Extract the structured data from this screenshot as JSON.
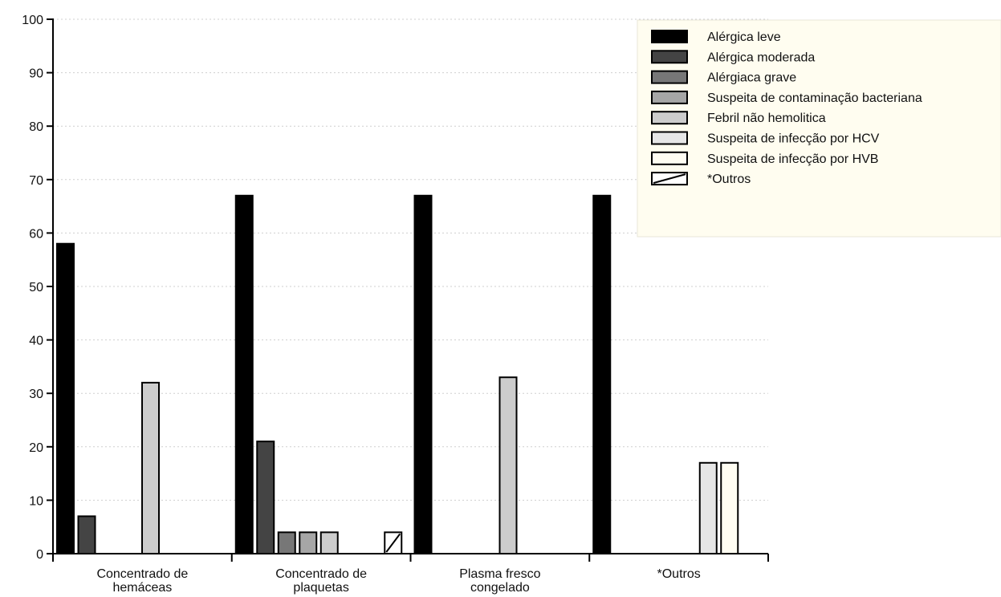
{
  "chart_data": {
    "type": "bar",
    "title": "",
    "xlabel": "",
    "ylabel": "",
    "ylim": [
      0,
      100
    ],
    "yticks": [
      0,
      10,
      20,
      30,
      40,
      50,
      60,
      70,
      80,
      90,
      100
    ],
    "grid": "horizontal-dotted",
    "legend_position": "top-right",
    "categories": [
      [
        "Concentrado de",
        "hemáceas"
      ],
      [
        "Concentrado de",
        "plaquetas"
      ],
      [
        "Plasma fresco",
        "congelado"
      ],
      [
        "*Outros"
      ]
    ],
    "series": [
      {
        "name": "Alérgica leve",
        "color": "#000000",
        "values": [
          58,
          67,
          67,
          67
        ]
      },
      {
        "name": "Alérgica moderada",
        "color": "#444444",
        "values": [
          7,
          21,
          0,
          0
        ]
      },
      {
        "name": "Alérgiaca grave",
        "color": "#777777",
        "values": [
          0,
          4,
          0,
          0
        ]
      },
      {
        "name": "Suspeita de contaminação bacteriana",
        "color": "#a6a6a6",
        "values": [
          0,
          4,
          0,
          0
        ]
      },
      {
        "name": "Febril não hemolitica",
        "color": "#cccccc",
        "values": [
          32,
          4,
          33,
          0
        ]
      },
      {
        "name": "Suspeita de infecção por HCV",
        "color": "#e6e6e6",
        "values": [
          0,
          0,
          0,
          17
        ]
      },
      {
        "name": "Suspeita de infecção por  HVB",
        "color": "#fffdf2",
        "values": [
          0,
          0,
          0,
          17
        ]
      },
      {
        "name": "*Outros",
        "color": "#ffffff",
        "pattern": "diagonal",
        "values": [
          0,
          4,
          0,
          0
        ]
      }
    ]
  }
}
